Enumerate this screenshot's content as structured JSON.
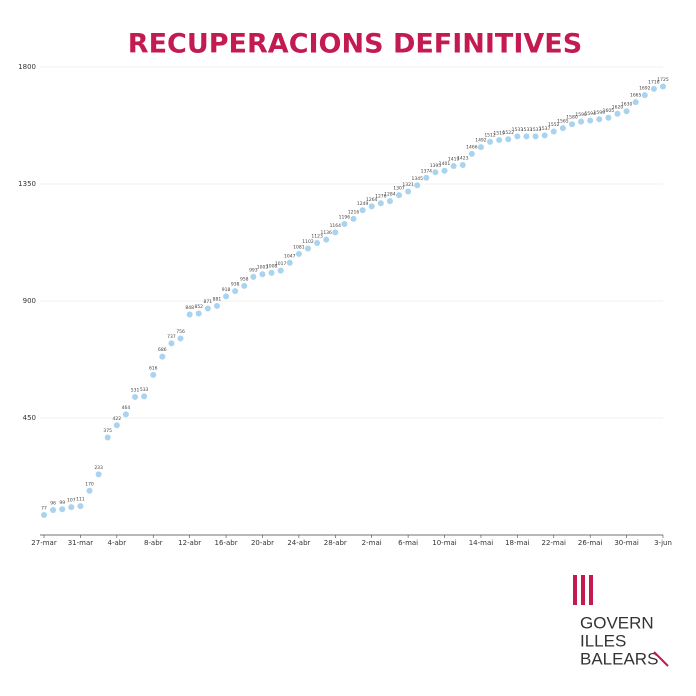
{
  "chart_data": {
    "type": "line",
    "title": "RECUPERACIONS DEFINITIVES",
    "categories": [
      "27-mar",
      null,
      null,
      null,
      "31-mar",
      null,
      null,
      null,
      "4-abr",
      null,
      null,
      null,
      "8-abr",
      null,
      null,
      null,
      "12-abr",
      null,
      null,
      null,
      "16-abr",
      null,
      null,
      null,
      "20-abr",
      null,
      null,
      null,
      "24-abr",
      null,
      null,
      null,
      "28-abr",
      null,
      null,
      null,
      "2-mai",
      null,
      null,
      null,
      "6-mai",
      null,
      null,
      null,
      "10-mai",
      null,
      null,
      null,
      "14-mai",
      null,
      null,
      null,
      "18-mai",
      null,
      null,
      null,
      "22-mai",
      null,
      null,
      null,
      "26-mai",
      null,
      null,
      null,
      "30-mai",
      null,
      null,
      null,
      "3-jun"
    ],
    "series": [
      {
        "name": "Recuperacions",
        "color": "#a9d3ee",
        "values": [
          77,
          96,
          99,
          107,
          111,
          170,
          233,
          375,
          422,
          464,
          531,
          533,
          616,
          686,
          737,
          756,
          848,
          852,
          871,
          881,
          918,
          938,
          958,
          993,
          1003,
          1008,
          1017,
          1047,
          1081,
          1102,
          1123,
          1136,
          1164,
          1196,
          1216,
          1249,
          1264,
          1276,
          1284,
          1307,
          1321,
          1345,
          1374,
          1395,
          1401,
          1419,
          1423,
          1466,
          1492,
          1512,
          1519,
          1522,
          1533,
          1533,
          1533,
          1537,
          1552,
          1565,
          1580,
          1590,
          1594,
          1599,
          1605,
          1620,
          1630,
          1665,
          1692,
          1716,
          1725
        ]
      }
    ],
    "ylim": [
      0,
      1800
    ],
    "yticks": [
      450,
      900,
      1350,
      1800
    ],
    "grid": true,
    "logo": [
      "GOVERN",
      "ILLES",
      "BALEARS"
    ]
  }
}
